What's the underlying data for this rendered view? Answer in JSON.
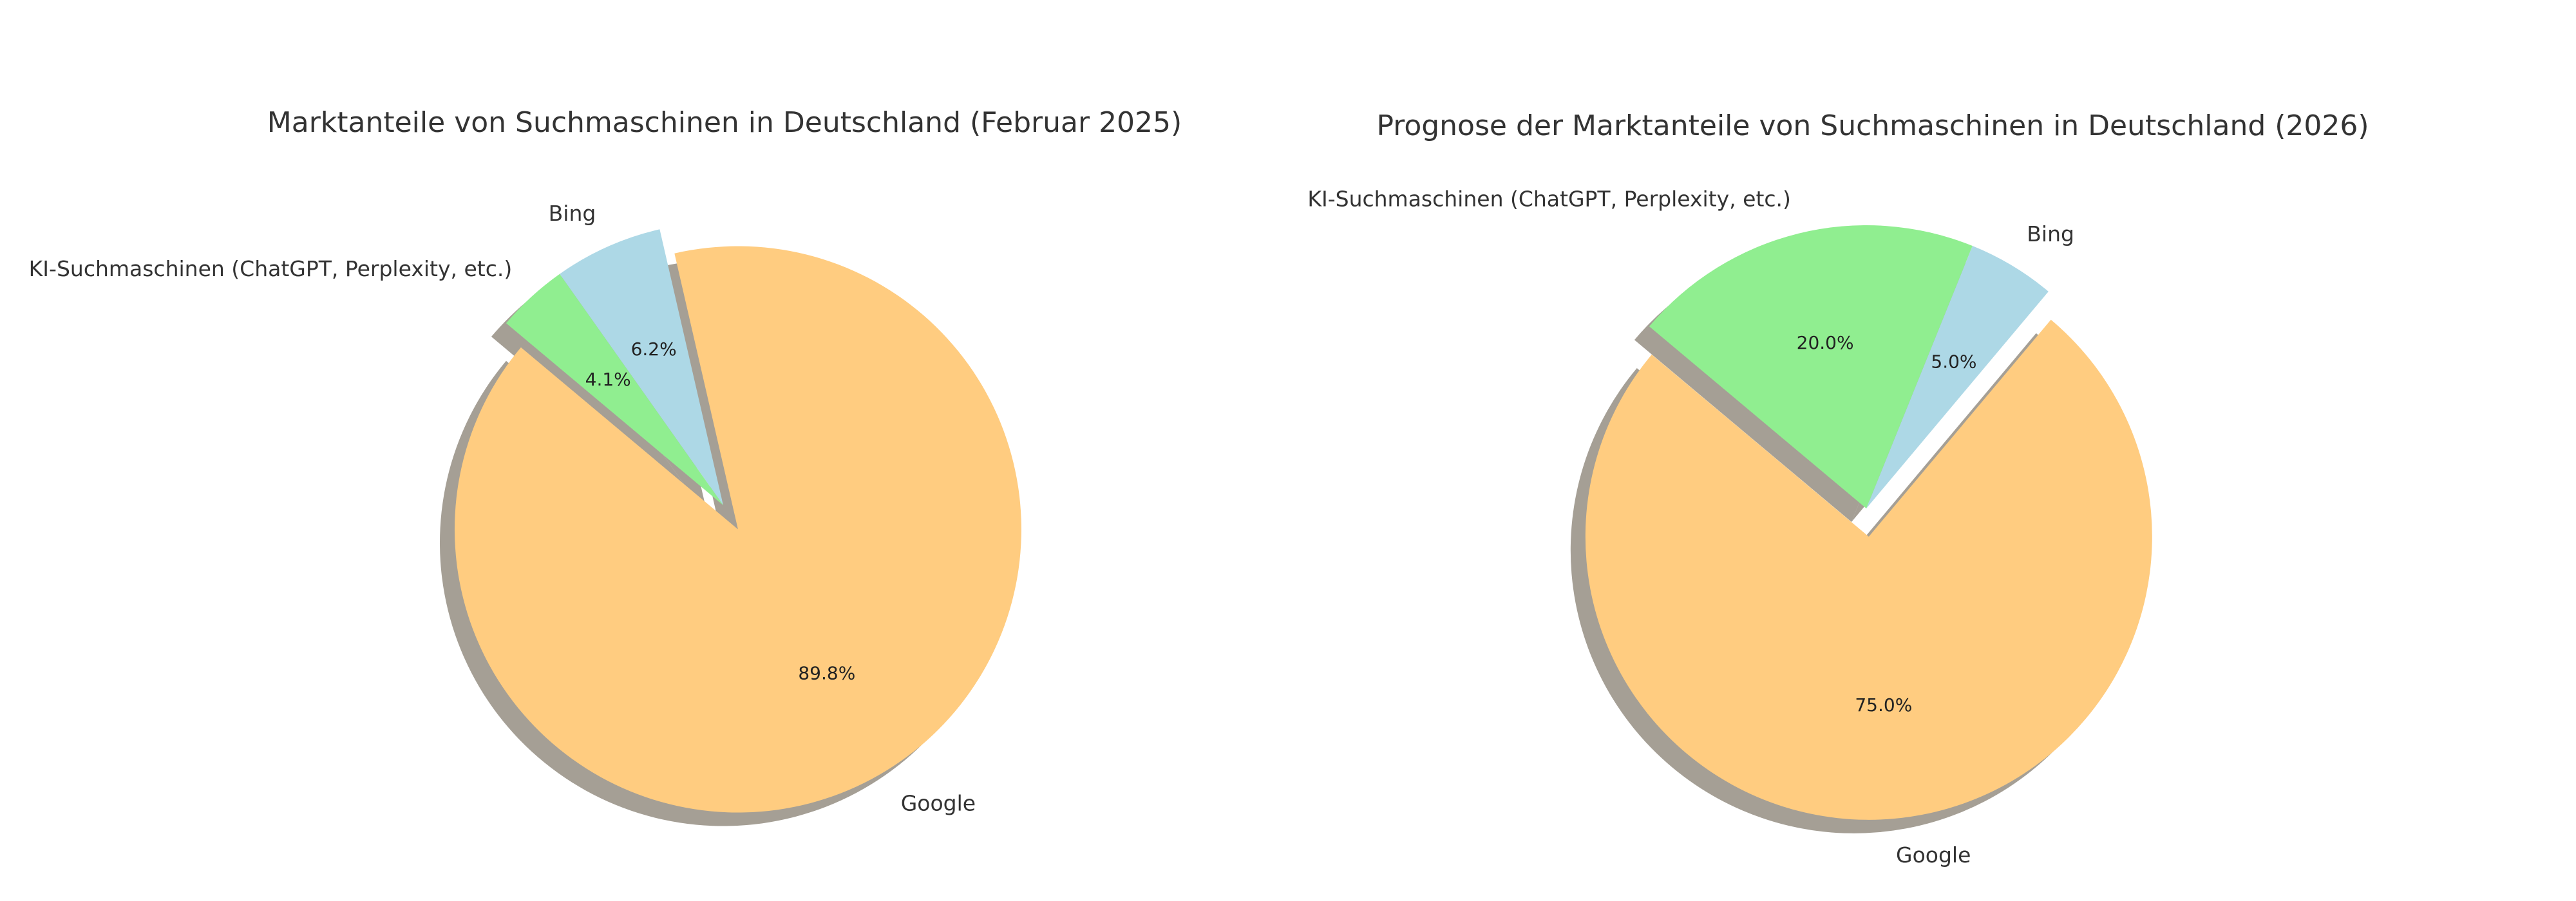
{
  "chart_data": [
    {
      "type": "pie",
      "title": "Marktanteile von Suchmaschinen in Deutschland (Februar 2025)",
      "categories": [
        "Google",
        "Bing",
        "KI-Suchmaschinen (ChatGPT, Perplexity, etc.)"
      ],
      "values": [
        89.8,
        6.2,
        4.1
      ],
      "value_labels": [
        "89.8%",
        "6.2%",
        "4.1%"
      ],
      "colors": [
        "#ffcc80",
        "#add8e6",
        "#90ee90"
      ],
      "exploded": [
        "Google"
      ],
      "start_angle_deg": 140,
      "direction": "counterclockwise",
      "shadow": true,
      "legend": "none"
    },
    {
      "type": "pie",
      "title": "Prognose der Marktanteile von Suchmaschinen in Deutschland (2026)",
      "categories": [
        "Google",
        "Bing",
        "KI-Suchmaschinen (ChatGPT, Perplexity, etc.)"
      ],
      "values": [
        75.0,
        5.0,
        20.0
      ],
      "value_labels": [
        "75.0%",
        "5.0%",
        "20.0%"
      ],
      "colors": [
        "#ffcc80",
        "#add8e6",
        "#90ee90"
      ],
      "exploded": [
        "Google"
      ],
      "start_angle_deg": 140,
      "direction": "counterclockwise",
      "shadow": true,
      "legend": "none"
    }
  ]
}
